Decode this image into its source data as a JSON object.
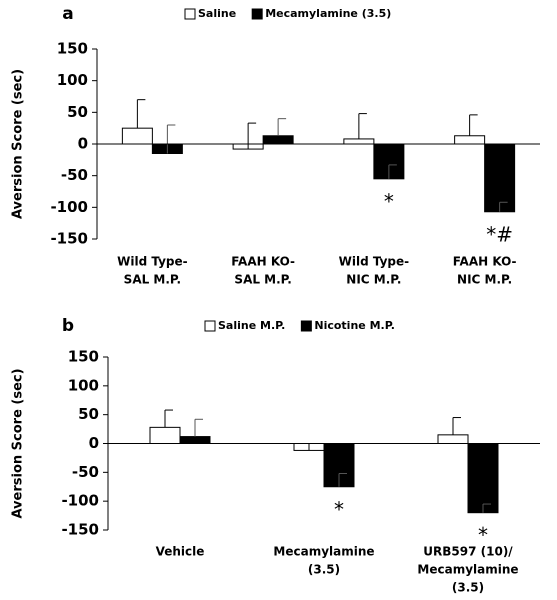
{
  "chart_data": [
    {
      "type": "bar",
      "panel_label": "a",
      "y_label": "Aversion Score (sec)",
      "categories": [
        [
          "Wild Type-",
          "SAL M.P."
        ],
        [
          "FAAH KO-",
          "SAL M.P."
        ],
        [
          "Wild Type-",
          "NIC M.P."
        ],
        [
          "FAAH KO-",
          "NIC M.P."
        ]
      ],
      "series": [
        {
          "name": "Saline",
          "color": "#ffffff",
          "values": [
            25,
            -8,
            8,
            13
          ],
          "errors": [
            45,
            41,
            40,
            33
          ]
        },
        {
          "name": "Mecamylamine (3.5)",
          "color": "#000000",
          "values": [
            -15,
            13,
            -55,
            -107
          ],
          "errors": [
            45,
            27,
            22,
            15
          ]
        }
      ],
      "annotations": [
        {
          "text": "*",
          "category": 2,
          "series": 1
        },
        {
          "text": "*#",
          "category": 3,
          "series": 1
        }
      ],
      "ylim": [
        -150,
        150
      ],
      "yticks": [
        -150,
        -100,
        -50,
        0,
        50,
        100,
        150
      ]
    },
    {
      "type": "bar",
      "panel_label": "b",
      "y_label": "Aversion Score (sec)",
      "categories": [
        [
          "Vehicle"
        ],
        [
          "Mecamylamine",
          "(3.5)"
        ],
        [
          "URB597 (10)/",
          "Mecamylamine",
          "(3.5)"
        ]
      ],
      "series": [
        {
          "name": "Saline M.P.",
          "color": "#ffffff",
          "values": [
            28,
            -12,
            15
          ],
          "errors": [
            30,
            12,
            30
          ]
        },
        {
          "name": "Nicotine M.P.",
          "color": "#000000",
          "values": [
            12,
            -75,
            -120
          ],
          "errors": [
            30,
            23,
            15
          ]
        }
      ],
      "annotations": [
        {
          "text": "*",
          "category": 1,
          "series": 1
        },
        {
          "text": "*",
          "category": 2,
          "series": 1
        }
      ],
      "ylim": [
        -150,
        150
      ],
      "yticks": [
        -150,
        -100,
        -50,
        0,
        50,
        100,
        150
      ]
    }
  ]
}
